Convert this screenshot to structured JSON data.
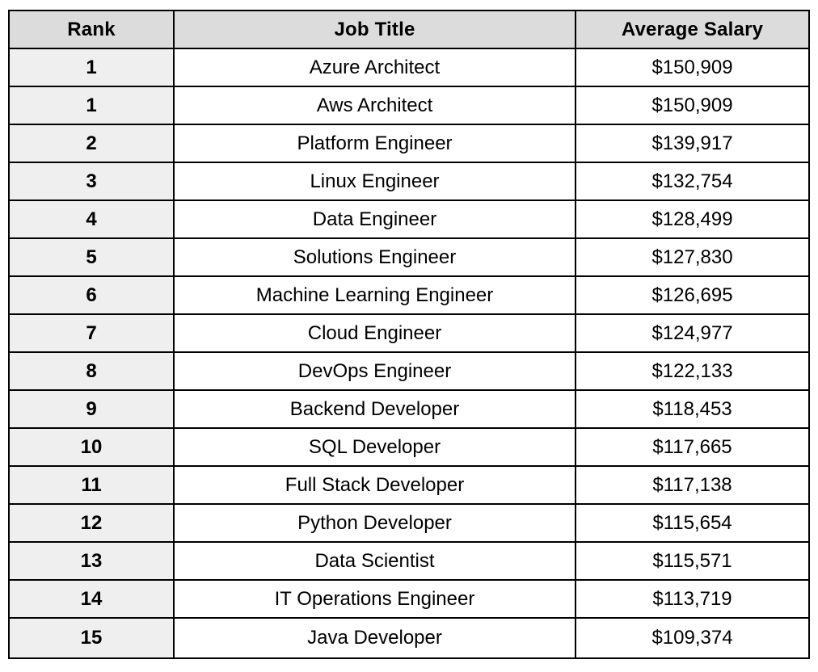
{
  "table": {
    "headers": {
      "rank": "Rank",
      "job_title": "Job Title",
      "average_salary": "Average Salary"
    },
    "rows": [
      {
        "rank": "1",
        "job_title": "Azure Architect",
        "average_salary": "$150,909"
      },
      {
        "rank": "1",
        "job_title": "Aws Architect",
        "average_salary": "$150,909"
      },
      {
        "rank": "2",
        "job_title": "Platform Engineer",
        "average_salary": "$139,917"
      },
      {
        "rank": "3",
        "job_title": "Linux Engineer",
        "average_salary": "$132,754"
      },
      {
        "rank": "4",
        "job_title": "Data Engineer",
        "average_salary": "$128,499"
      },
      {
        "rank": "5",
        "job_title": "Solutions Engineer",
        "average_salary": "$127,830"
      },
      {
        "rank": "6",
        "job_title": "Machine Learning Engineer",
        "average_salary": "$126,695"
      },
      {
        "rank": "7",
        "job_title": "Cloud Engineer",
        "average_salary": "$124,977"
      },
      {
        "rank": "8",
        "job_title": "DevOps Engineer",
        "average_salary": "$122,133"
      },
      {
        "rank": "9",
        "job_title": "Backend Developer",
        "average_salary": "$118,453"
      },
      {
        "rank": "10",
        "job_title": "SQL Developer",
        "average_salary": "$117,665"
      },
      {
        "rank": "11",
        "job_title": "Full Stack Developer",
        "average_salary": "$117,138"
      },
      {
        "rank": "12",
        "job_title": "Python Developer",
        "average_salary": "$115,654"
      },
      {
        "rank": "13",
        "job_title": "Data Scientist",
        "average_salary": "$115,571"
      },
      {
        "rank": "14",
        "job_title": "IT Operations Engineer",
        "average_salary": "$113,719"
      },
      {
        "rank": "15",
        "job_title": "Java Developer",
        "average_salary": "$109,374"
      }
    ]
  },
  "colors": {
    "header_bg": "#dcdcdc",
    "rank_col_bg": "#efefef",
    "cell_bg": "#ffffff",
    "border": "#000000",
    "text": "#000000"
  }
}
